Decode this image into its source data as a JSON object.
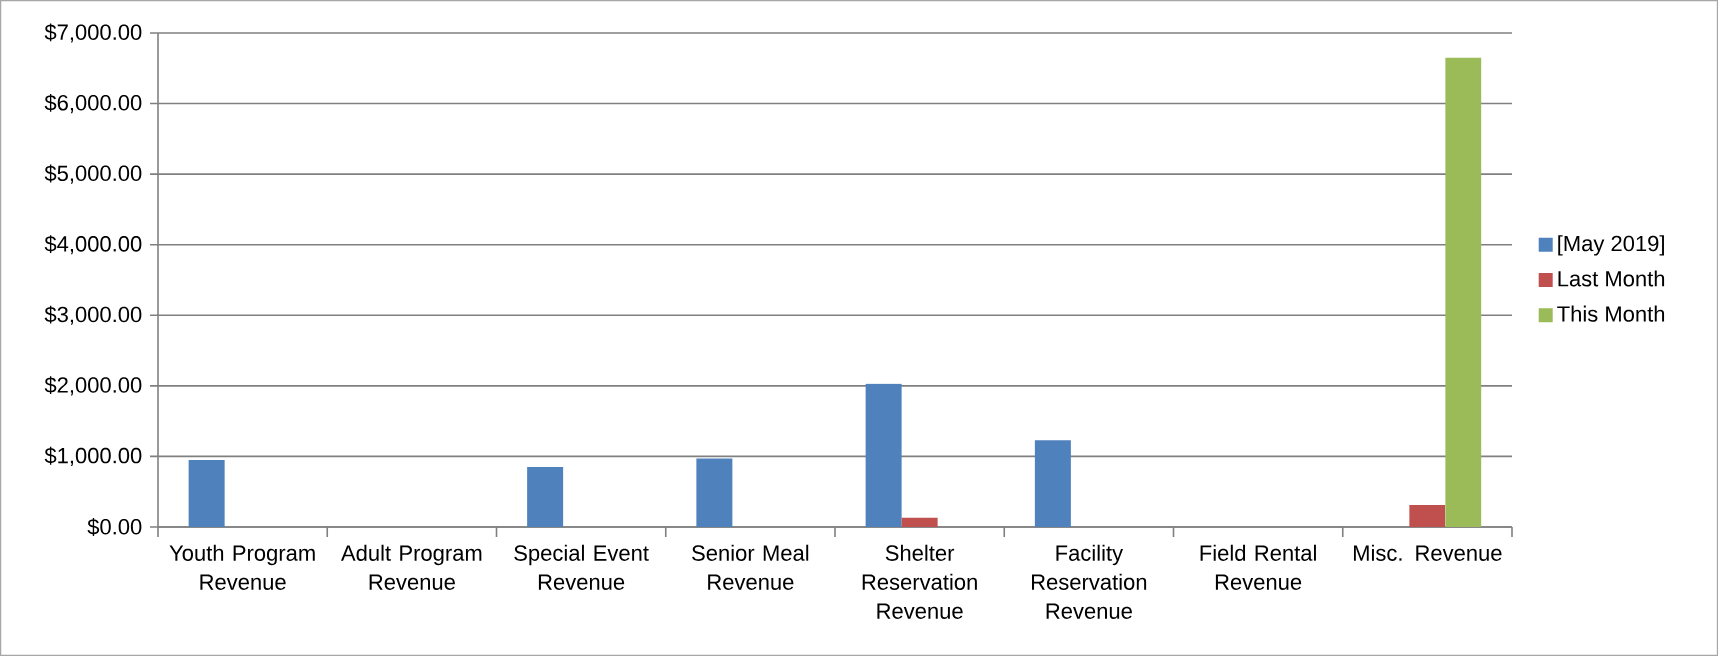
{
  "chart_data": {
    "type": "bar",
    "categories": [
      "Youth Program Revenue",
      "Adult Program Revenue",
      "Special Event Revenue",
      "Senior Meal Revenue",
      "Shelter Reservation Revenue",
      "Facility Reservation Revenue",
      "Field Rental Revenue",
      "Misc. Revenue"
    ],
    "series": [
      {
        "name": "[May 2019]",
        "color": "#4f81bd",
        "values": [
          950,
          0,
          850,
          970,
          2030,
          1230,
          0,
          0
        ]
      },
      {
        "name": "Last Month",
        "color": "#c0504d",
        "values": [
          0,
          0,
          0,
          0,
          130,
          0,
          0,
          310
        ]
      },
      {
        "name": "This Month",
        "color": "#9bbb59",
        "values": [
          0,
          0,
          0,
          0,
          0,
          0,
          0,
          6650
        ]
      }
    ],
    "ylim": [
      0,
      7000
    ],
    "yticks": [
      {
        "value": 0,
        "label": "$0.00"
      },
      {
        "value": 1000,
        "label": "$1,000.00"
      },
      {
        "value": 2000,
        "label": "$2,000.00"
      },
      {
        "value": 3000,
        "label": "$3,000.00"
      },
      {
        "value": 4000,
        "label": "$4,000.00"
      },
      {
        "value": 5000,
        "label": "$5,000.00"
      },
      {
        "value": 6000,
        "label": "$6,000.00"
      },
      {
        "value": 7000,
        "label": "$7,000.00"
      }
    ],
    "grid": "y",
    "legend": "right"
  }
}
